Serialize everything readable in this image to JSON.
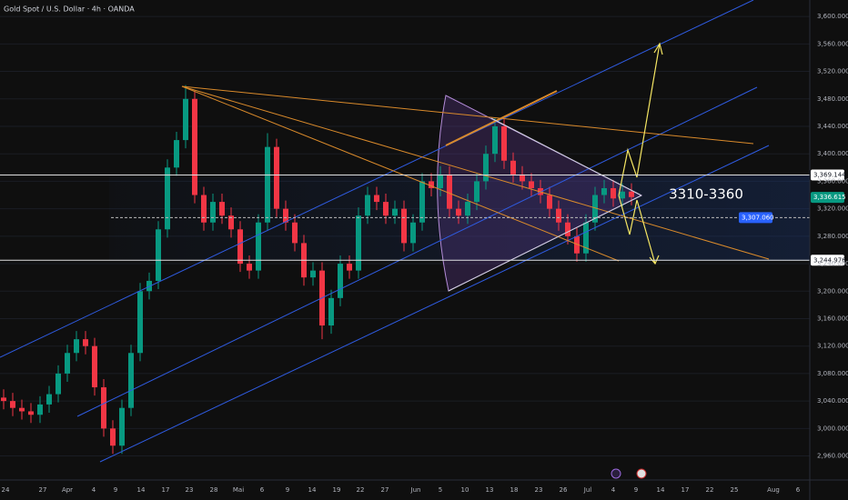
{
  "header": {
    "title": "Gold Spot / U.S. Dollar · 4h · OANDA"
  },
  "chart_data": {
    "type": "candlestick",
    "open": [
      3045,
      3040,
      3030,
      3025,
      3020,
      3035,
      3050,
      3080,
      3110,
      3130,
      3120,
      3060,
      3000,
      2975,
      3030,
      3110,
      3200,
      3215,
      3290,
      3380,
      3420,
      3480,
      3340,
      3300,
      3330,
      3310,
      3290,
      3240,
      3230,
      3300,
      3410,
      3320,
      3300,
      3270,
      3220,
      3230,
      3150,
      3190,
      3240,
      3230,
      3310,
      3340,
      3330,
      3310,
      3320,
      3270,
      3300,
      3360,
      3350,
      3370,
      3320,
      3310,
      3330,
      3360,
      3400,
      3440,
      3390,
      3370,
      3360,
      3350,
      3340,
      3320,
      3300,
      3280,
      3255,
      3300,
      3340,
      3350,
      3335,
      3345
    ],
    "high": [
      3057,
      3052,
      3042,
      3037,
      3047,
      3062,
      3092,
      3122,
      3142,
      3142,
      3132,
      3072,
      3012,
      3042,
      3122,
      3212,
      3227,
      3302,
      3392,
      3432,
      3500,
      3492,
      3352,
      3342,
      3342,
      3322,
      3302,
      3252,
      3312,
      3430,
      3422,
      3332,
      3312,
      3282,
      3242,
      3242,
      3202,
      3252,
      3252,
      3322,
      3352,
      3352,
      3342,
      3332,
      3332,
      3312,
      3372,
      3372,
      3382,
      3382,
      3332,
      3342,
      3372,
      3412,
      3452,
      3452,
      3402,
      3382,
      3372,
      3362,
      3352,
      3332,
      3312,
      3292,
      3312,
      3352,
      3362,
      3362,
      3357,
      3357
    ],
    "low": [
      3028,
      3018,
      3013,
      3008,
      3008,
      3023,
      3038,
      3068,
      3098,
      3108,
      3048,
      2988,
      2963,
      2963,
      3018,
      3098,
      3188,
      3203,
      3278,
      3368,
      3408,
      3328,
      3288,
      3288,
      3298,
      3278,
      3228,
      3218,
      3218,
      3288,
      3308,
      3288,
      3258,
      3208,
      3208,
      3130,
      3138,
      3178,
      3218,
      3218,
      3298,
      3318,
      3298,
      3298,
      3258,
      3258,
      3288,
      3338,
      3338,
      3308,
      3298,
      3298,
      3318,
      3348,
      3388,
      3378,
      3358,
      3348,
      3338,
      3328,
      3308,
      3288,
      3268,
      3243,
      3243,
      3288,
      3328,
      3323,
      3323,
      3325
    ],
    "close": [
      3040,
      3030,
      3025,
      3020,
      3035,
      3050,
      3080,
      3110,
      3130,
      3120,
      3060,
      3000,
      2975,
      3030,
      3110,
      3200,
      3215,
      3290,
      3380,
      3420,
      3480,
      3340,
      3300,
      3330,
      3310,
      3290,
      3240,
      3230,
      3300,
      3410,
      3320,
      3300,
      3270,
      3220,
      3230,
      3150,
      3190,
      3240,
      3230,
      3310,
      3340,
      3330,
      3310,
      3320,
      3270,
      3300,
      3360,
      3350,
      3370,
      3320,
      3310,
      3330,
      3360,
      3400,
      3440,
      3390,
      3370,
      3360,
      3350,
      3340,
      3320,
      3300,
      3280,
      3255,
      3300,
      3340,
      3350,
      3335,
      3345,
      3337
    ],
    "up_color": "#089981",
    "down_color": "#f23645",
    "ylim": [
      2925,
      3624
    ],
    "yticks": [
      {
        "value": 2960,
        "label": "2,960.000"
      },
      {
        "value": 3000,
        "label": "3,000.000"
      },
      {
        "value": 3040,
        "label": "3,040.000"
      },
      {
        "value": 3080,
        "label": "3,080.000"
      },
      {
        "value": 3120,
        "label": "3,120.000"
      },
      {
        "value": 3160,
        "label": "3,160.000"
      },
      {
        "value": 3200,
        "label": "3,200.000"
      },
      {
        "value": 3240,
        "label": "3,240.000"
      },
      {
        "value": 3280,
        "label": "3,280.000"
      },
      {
        "value": 3320,
        "label": "3,320.000"
      },
      {
        "value": 3360,
        "label": "3,360.000"
      },
      {
        "value": 3400,
        "label": "3,400.000"
      },
      {
        "value": 3440,
        "label": "3,440.000"
      },
      {
        "value": 3480,
        "label": "3,480.000"
      },
      {
        "value": 3520,
        "label": "3,520.000"
      },
      {
        "value": 3560,
        "label": "3,560.000"
      },
      {
        "value": 3600,
        "label": "3,600.000"
      }
    ],
    "grid": true,
    "x_labels": [
      "24",
      "27",
      "Apr",
      "4",
      "9",
      "14",
      "17",
      "23",
      "28",
      "Mai",
      "6",
      "9",
      "14",
      "19",
      "22",
      "27",
      "Jun",
      "5",
      "10",
      "13",
      "18",
      "23",
      "26",
      "Jul",
      "4",
      "9",
      "14",
      "17",
      "22",
      "25",
      "Aug",
      "6"
    ],
    "price_levels": [
      {
        "value": 3369.144,
        "label": "3,369.144",
        "color": "#ffffff"
      },
      {
        "value": 3336.615,
        "label": "3,336.615",
        "color": "#089981"
      },
      {
        "value": 3307.06,
        "label": "3,307.060",
        "color": "#2962ff"
      },
      {
        "value": 3244.976,
        "label": "3,244.976",
        "color": "#ffffff"
      }
    ],
    "annotation": "3310-3360"
  }
}
